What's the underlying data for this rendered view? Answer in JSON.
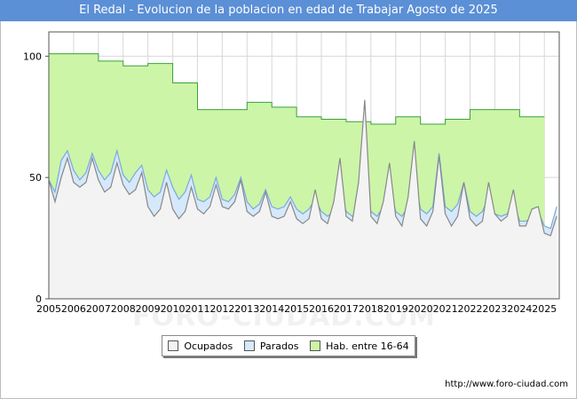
{
  "title": "El Redal - Evolucion de la poblacion en edad de Trabajar Agosto de 2025",
  "watermark": "FORO-CIUDAD.COM",
  "source": "http://www.foro-ciudad.com",
  "colors": {
    "title_bg": "#5b8fd6",
    "hab_fill": "#ccf5a8",
    "hab_line": "#3aa23a",
    "parados_fill": "#d6e8fb",
    "parados_line": "#7aa8e0",
    "ocupados_fill": "#f3f3f3",
    "ocupados_line": "#888888",
    "grid": "#d8d8d8"
  },
  "chart_data": {
    "type": "area",
    "xlim": [
      2005,
      2025.6
    ],
    "ylim": [
      0,
      110
    ],
    "y_ticks": [
      0,
      50,
      100
    ],
    "x_ticks": [
      2005,
      2006,
      2007,
      2008,
      2009,
      2010,
      2011,
      2012,
      2013,
      2014,
      2015,
      2016,
      2017,
      2018,
      2019,
      2020,
      2021,
      2022,
      2023,
      2024,
      2025
    ],
    "grid": true,
    "legend_position": "bottom-center",
    "series": [
      {
        "name": "Hab. entre 16-64",
        "type": "step",
        "x": [
          2005,
          2006,
          2007,
          2008,
          2009,
          2010,
          2011,
          2012,
          2013,
          2014,
          2015,
          2016,
          2017,
          2018,
          2019,
          2020,
          2021,
          2022,
          2023,
          2024
        ],
        "values": [
          101,
          101,
          98,
          96,
          97,
          89,
          78,
          78,
          81,
          79,
          75,
          74,
          73,
          72,
          75,
          72,
          74,
          78,
          78,
          75
        ]
      },
      {
        "name": "Parados",
        "type": "line",
        "x": [
          2005.0,
          2005.25,
          2005.5,
          2005.75,
          2006.0,
          2006.25,
          2006.5,
          2006.75,
          2007.0,
          2007.25,
          2007.5,
          2007.75,
          2008.0,
          2008.25,
          2008.5,
          2008.75,
          2009.0,
          2009.25,
          2009.5,
          2009.75,
          2010.0,
          2010.25,
          2010.5,
          2010.75,
          2011.0,
          2011.25,
          2011.5,
          2011.75,
          2012.0,
          2012.25,
          2012.5,
          2012.75,
          2013.0,
          2013.25,
          2013.5,
          2013.75,
          2014.0,
          2014.25,
          2014.5,
          2014.75,
          2015.0,
          2015.25,
          2015.5,
          2015.75,
          2016.0,
          2016.25,
          2016.5,
          2016.75,
          2017.0,
          2017.25,
          2017.5,
          2017.75,
          2018.0,
          2018.25,
          2018.5,
          2018.75,
          2019.0,
          2019.25,
          2019.5,
          2019.75,
          2020.0,
          2020.25,
          2020.5,
          2020.75,
          2021.0,
          2021.25,
          2021.5,
          2021.75,
          2022.0,
          2022.25,
          2022.5,
          2022.75,
          2023.0,
          2023.25,
          2023.5,
          2023.75,
          2024.0,
          2024.25,
          2024.5,
          2024.75,
          2025.0,
          2025.25,
          2025.5
        ],
        "values": [
          49,
          44,
          57,
          61,
          53,
          49,
          52,
          60,
          53,
          49,
          52,
          61,
          51,
          48,
          52,
          55,
          45,
          42,
          44,
          53,
          46,
          41,
          44,
          51,
          41,
          40,
          42,
          50,
          41,
          40,
          43,
          50,
          40,
          37,
          39,
          45,
          38,
          37,
          38,
          42,
          37,
          35,
          37,
          41,
          36,
          34,
          36,
          45,
          36,
          34,
          36,
          44,
          36,
          34,
          38,
          46,
          36,
          34,
          38,
          50,
          37,
          35,
          38,
          60,
          38,
          36,
          39,
          48,
          36,
          34,
          36,
          42,
          35,
          34,
          35,
          40,
          32,
          32,
          33,
          36,
          30,
          29,
          38
        ]
      },
      {
        "name": "Ocupados",
        "type": "line",
        "x": [
          2005.0,
          2005.25,
          2005.5,
          2005.75,
          2006.0,
          2006.25,
          2006.5,
          2006.75,
          2007.0,
          2007.25,
          2007.5,
          2007.75,
          2008.0,
          2008.25,
          2008.5,
          2008.75,
          2009.0,
          2009.25,
          2009.5,
          2009.75,
          2010.0,
          2010.25,
          2010.5,
          2010.75,
          2011.0,
          2011.25,
          2011.5,
          2011.75,
          2012.0,
          2012.25,
          2012.5,
          2012.75,
          2013.0,
          2013.25,
          2013.5,
          2013.75,
          2014.0,
          2014.25,
          2014.5,
          2014.75,
          2015.0,
          2015.25,
          2015.5,
          2015.75,
          2016.0,
          2016.25,
          2016.5,
          2016.75,
          2017.0,
          2017.25,
          2017.5,
          2017.75,
          2018.0,
          2018.25,
          2018.5,
          2018.75,
          2019.0,
          2019.25,
          2019.5,
          2019.75,
          2020.0,
          2020.25,
          2020.5,
          2020.75,
          2021.0,
          2021.25,
          2021.5,
          2021.75,
          2022.0,
          2022.25,
          2022.5,
          2022.75,
          2023.0,
          2023.25,
          2023.5,
          2023.75,
          2024.0,
          2024.25,
          2024.5,
          2024.75,
          2025.0,
          2025.25,
          2025.5
        ],
        "values": [
          49,
          40,
          50,
          58,
          48,
          46,
          48,
          58,
          49,
          44,
          46,
          56,
          47,
          43,
          45,
          52,
          38,
          34,
          37,
          48,
          37,
          33,
          36,
          46,
          37,
          35,
          38,
          47,
          38,
          37,
          40,
          49,
          36,
          34,
          36,
          44,
          34,
          33,
          34,
          40,
          33,
          31,
          33,
          45,
          33,
          31,
          40,
          58,
          34,
          32,
          48,
          82,
          34,
          31,
          40,
          56,
          34,
          30,
          42,
          65,
          33,
          30,
          36,
          59,
          35,
          30,
          34,
          48,
          33,
          30,
          32,
          48,
          35,
          32,
          34,
          45,
          30,
          30,
          37,
          38,
          27,
          26,
          34
        ]
      }
    ]
  }
}
